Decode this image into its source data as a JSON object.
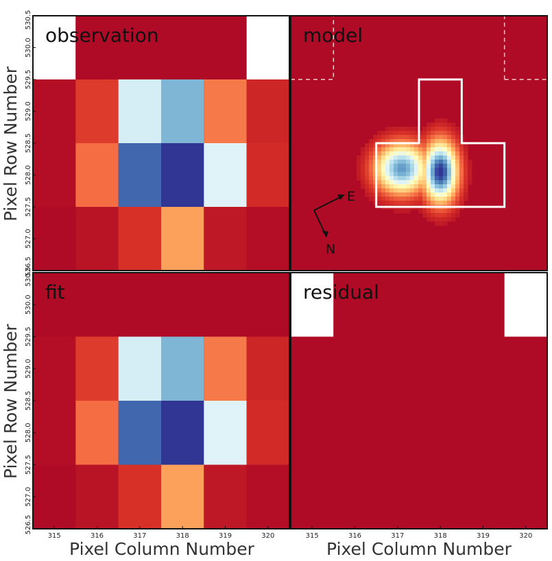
{
  "chart_data": {
    "type": "heatmap",
    "x_axis": {
      "label": "Pixel Column Number",
      "range": [
        314.5,
        320.5
      ],
      "ticks": [
        "315",
        "316",
        "317",
        "318",
        "319",
        "320"
      ]
    },
    "y_axis": {
      "label": "Pixel Row Number",
      "range": [
        526.5,
        530.5
      ],
      "ticks_top": [
        "530.5",
        "530.0",
        "529.5",
        "529.0",
        "528.5",
        "528.0",
        "527.5",
        "527.0",
        "526.5"
      ],
      "ticks_bottom": [
        "530.5",
        "530.0",
        "529.5",
        "529.0",
        "528.5",
        "528.0",
        "527.5",
        "527.0",
        "526.5"
      ]
    },
    "colormap": [
      "#a50026",
      "#d73027",
      "#f46d43",
      "#fdae61",
      "#fee090",
      "#ffffbf",
      "#e0f3f8",
      "#abd9e9",
      "#74add1",
      "#4575b4",
      "#313695"
    ],
    "colors": {
      "missing": "#ffffff",
      "aperture": "#ffffff",
      "axes": "#111111"
    },
    "columns": [
      315,
      316,
      317,
      318,
      319,
      320
    ],
    "rows": [
      530,
      529,
      528,
      527
    ],
    "panels": [
      {
        "id": "observation",
        "title": "observation",
        "kind": "grid",
        "values": [
          [
            null,
            0.02,
            0.02,
            0.02,
            0.02,
            null
          ],
          [
            0.03,
            0.12,
            0.62,
            0.78,
            0.22,
            0.08
          ],
          [
            0.03,
            0.2,
            0.92,
            1.0,
            0.6,
            0.09
          ],
          [
            0.02,
            0.04,
            0.1,
            0.28,
            0.05,
            0.03
          ]
        ]
      },
      {
        "id": "model",
        "title": "model",
        "kind": "prf",
        "source_center": [
          318.0,
          528.05
        ],
        "secondary_source": [
          317.1,
          528.1
        ],
        "aperture_pixels": [
          [
            318,
            529
          ],
          [
            317,
            528
          ],
          [
            318,
            528
          ],
          [
            319,
            528
          ]
        ],
        "mask_pixels": [
          [
            315,
            530
          ],
          [
            320,
            530
          ]
        ],
        "compass": {
          "E_label": "E",
          "N_label": "N"
        }
      },
      {
        "id": "fit",
        "title": "fit",
        "kind": "grid",
        "values": [
          [
            0.02,
            0.02,
            0.02,
            0.02,
            0.02,
            0.02
          ],
          [
            0.03,
            0.12,
            0.62,
            0.78,
            0.22,
            0.08
          ],
          [
            0.03,
            0.2,
            0.92,
            1.0,
            0.6,
            0.09
          ],
          [
            0.02,
            0.04,
            0.1,
            0.28,
            0.05,
            0.03
          ]
        ]
      },
      {
        "id": "residual",
        "title": "residual",
        "kind": "grid",
        "values": [
          [
            null,
            0.02,
            0.02,
            0.02,
            0.02,
            null
          ],
          [
            0.02,
            0.02,
            0.02,
            0.02,
            0.02,
            0.02
          ],
          [
            0.02,
            0.02,
            0.02,
            0.02,
            0.02,
            0.02
          ],
          [
            0.02,
            0.02,
            0.02,
            0.02,
            0.02,
            0.02
          ]
        ]
      }
    ]
  }
}
